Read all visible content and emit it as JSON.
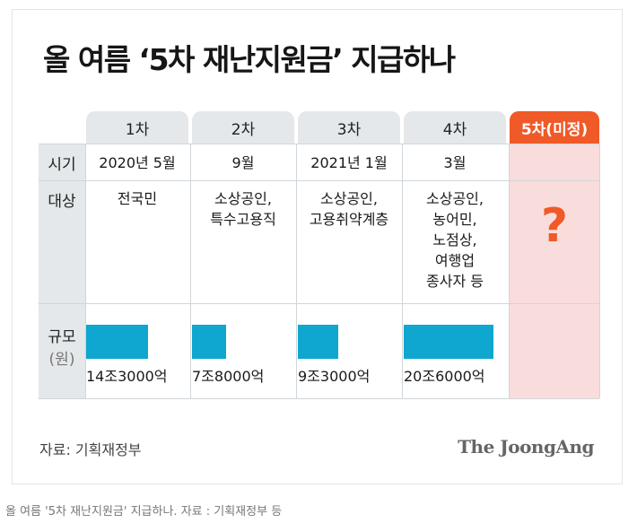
{
  "title": "올 여름 ‘5차 재난지원금’ 지급하나",
  "chart_data": {
    "type": "table",
    "columns": [
      "1차",
      "2차",
      "3차",
      "4차",
      "5차(미정)"
    ],
    "row_labels": {
      "period": "시기",
      "target": "대상",
      "scale": "규모",
      "scale_unit": "(원)"
    },
    "period": [
      "2020년 5월",
      "9월",
      "2021년 1월",
      "3월",
      ""
    ],
    "target": [
      [
        "전국민"
      ],
      [
        "소상공인,",
        "특수고용직"
      ],
      [
        "소상공인,",
        "고용취약계층"
      ],
      [
        "소상공인,",
        "농어민,",
        "노점상,",
        "여행업",
        "종사자 등"
      ],
      [
        "?"
      ]
    ],
    "scale_values_won": [
      14300000000000,
      7800000000000,
      9300000000000,
      20600000000000
    ],
    "scale_labels": [
      "14조3000억",
      "7조8000억",
      "9조3000억",
      "20조6000억"
    ],
    "highlight_color": "#f05a28",
    "bar_color": "#0fa6cf"
  },
  "source": "자료: 기획재정부",
  "brand": "The JoongAng",
  "caption": "올 여름 '5차 재난지원금' 지급하나. 자료 : 기획재정부 등"
}
